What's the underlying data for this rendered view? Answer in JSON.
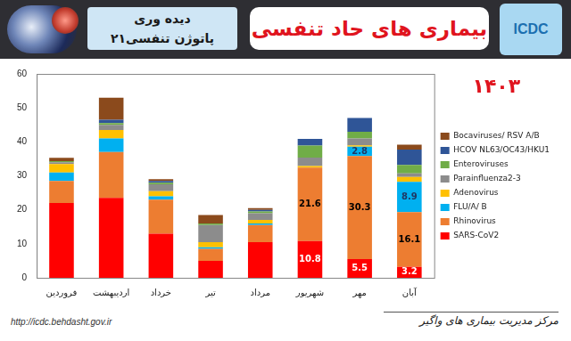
{
  "header": {
    "title": "بیماری های حاد تنفسی",
    "badge": [
      "دیده وری",
      "پاتوژن تنفسی۲۱"
    ],
    "logo": "ICDC"
  },
  "chart_data": {
    "type": "bar",
    "stacked": true,
    "annotation": "۱۴۰۳",
    "categories": [
      "فروردین",
      "اردیبهشت",
      "خرداد",
      "تیر",
      "مرداد",
      "شهریور",
      "مهر",
      "آبان"
    ],
    "series": [
      {
        "name": "SARS-CoV2",
        "color": "#ff0000",
        "values": [
          22,
          23.5,
          13,
          5,
          10.5,
          10.8,
          5.5,
          3.2
        ],
        "value_labels": [
          null,
          null,
          null,
          null,
          null,
          "10.8",
          "5.5",
          "3.2"
        ]
      },
      {
        "name": "Rhinovirus",
        "color": "#ed7d31",
        "values": [
          6.5,
          13.5,
          10,
          3.5,
          5,
          21.6,
          30.3,
          16.1
        ],
        "value_labels": [
          null,
          null,
          null,
          null,
          null,
          "21.6",
          "30.3",
          "16.1"
        ]
      },
      {
        "name": "FLU/A/ B",
        "color": "#00b0f0",
        "values": [
          2.5,
          4,
          1,
          0.5,
          0.5,
          0,
          2.8,
          8.9
        ],
        "value_labels": [
          null,
          null,
          null,
          null,
          null,
          null,
          "2.8",
          "8.9"
        ]
      },
      {
        "name": "Adenovirus",
        "color": "#ffc000",
        "values": [
          2.5,
          2.5,
          1.5,
          1.5,
          1,
          0.5,
          0.4,
          1.5
        ]
      },
      {
        "name": "Parainfluenza2-3",
        "color": "#8c8c8c",
        "values": [
          0.5,
          1.5,
          2,
          5,
          2,
          2.5,
          2,
          1
        ]
      },
      {
        "name": "Enteroviruses",
        "color": "#70ad47",
        "values": [
          0.3,
          0.5,
          0.5,
          0.5,
          0.5,
          3.5,
          2,
          2.5
        ]
      },
      {
        "name": "HCOV NL63/OC43/HKU1",
        "color": "#2f5597",
        "values": [
          0,
          1,
          0.5,
          0,
          0.5,
          2,
          4,
          4.5
        ]
      },
      {
        "name": "Bocaviruses/ RSV A/B",
        "color": "#8b4a1c",
        "values": [
          1,
          6.5,
          0.5,
          2.5,
          0.5,
          0,
          0,
          1.5
        ]
      }
    ],
    "ylim": [
      0,
      60
    ],
    "yticks": [
      0,
      10,
      20,
      30,
      40,
      50,
      60
    ],
    "grid": false,
    "legend": "right",
    "data_labels": true
  },
  "footer": {
    "url": "http://icdc.behdasht.gov.ir",
    "organization": "مرکز مدیریت بیماری های واگیر"
  }
}
